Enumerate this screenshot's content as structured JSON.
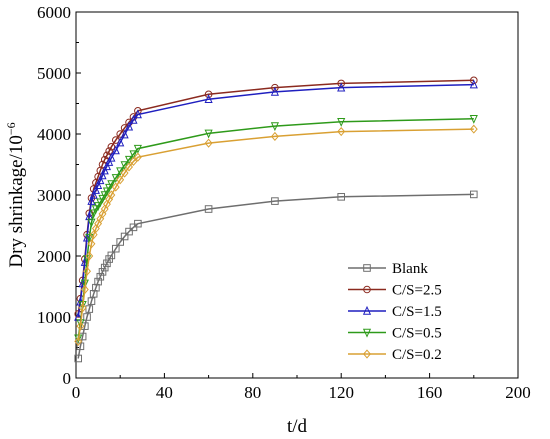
{
  "chart_data": {
    "type": "line",
    "xlabel": "t/d",
    "ylabel": "Dry shrinkage/10",
    "ylabel_exponent": "−6",
    "xlim": [
      0,
      200
    ],
    "ylim": [
      0,
      6000
    ],
    "x_ticks": [
      "0",
      "40",
      "80",
      "120",
      "160",
      "200"
    ],
    "y_ticks": [
      "0",
      "1000",
      "2000",
      "3000",
      "4000",
      "5000",
      "6000"
    ],
    "grid": false,
    "legend_position": "bottom-right",
    "x": [
      1,
      2,
      3,
      4,
      5,
      6,
      7,
      8,
      9,
      10,
      11,
      12,
      13,
      14,
      15,
      16,
      18,
      20,
      22,
      24,
      26,
      28,
      60,
      90,
      120,
      180
    ],
    "series": [
      {
        "name": "Blank",
        "color": "#6e6e6e",
        "marker": "square",
        "values": [
          320,
          520,
          680,
          850,
          1000,
          1130,
          1260,
          1380,
          1480,
          1580,
          1660,
          1740,
          1810,
          1880,
          1950,
          2010,
          2120,
          2230,
          2320,
          2400,
          2470,
          2530,
          2770,
          2900,
          2970,
          3010
        ]
      },
      {
        "name": "C/S=2.5",
        "color": "#8b2a1f",
        "marker": "circle",
        "values": [
          1050,
          1300,
          1600,
          1950,
          2350,
          2700,
          2950,
          3100,
          3200,
          3300,
          3400,
          3500,
          3580,
          3650,
          3720,
          3790,
          3900,
          4000,
          4100,
          4190,
          4280,
          4380,
          4650,
          4760,
          4830,
          4880
        ]
      },
      {
        "name": "C/S=1.5",
        "color": "#1f1fbf",
        "marker": "triangle-up",
        "values": [
          1000,
          1250,
          1550,
          1900,
          2300,
          2650,
          2900,
          3000,
          3080,
          3160,
          3240,
          3320,
          3400,
          3470,
          3540,
          3610,
          3730,
          3860,
          3990,
          4120,
          4230,
          4320,
          4570,
          4690,
          4760,
          4810
        ]
      },
      {
        "name": "C/S=0.5",
        "color": "#2e9a1a",
        "marker": "triangle-down",
        "values": [
          650,
          900,
          1200,
          1550,
          1950,
          2300,
          2550,
          2700,
          2770,
          2820,
          2880,
          2940,
          3000,
          3060,
          3120,
          3180,
          3280,
          3390,
          3490,
          3580,
          3670,
          3760,
          4010,
          4130,
          4200,
          4250
        ]
      },
      {
        "name": "C/S=0.2",
        "color": "#d9a033",
        "marker": "diamond",
        "values": [
          600,
          850,
          1150,
          1450,
          1750,
          2000,
          2200,
          2350,
          2450,
          2530,
          2610,
          2690,
          2770,
          2850,
          2930,
          3000,
          3130,
          3250,
          3360,
          3460,
          3550,
          3620,
          3850,
          3960,
          4040,
          4080
        ]
      }
    ]
  }
}
